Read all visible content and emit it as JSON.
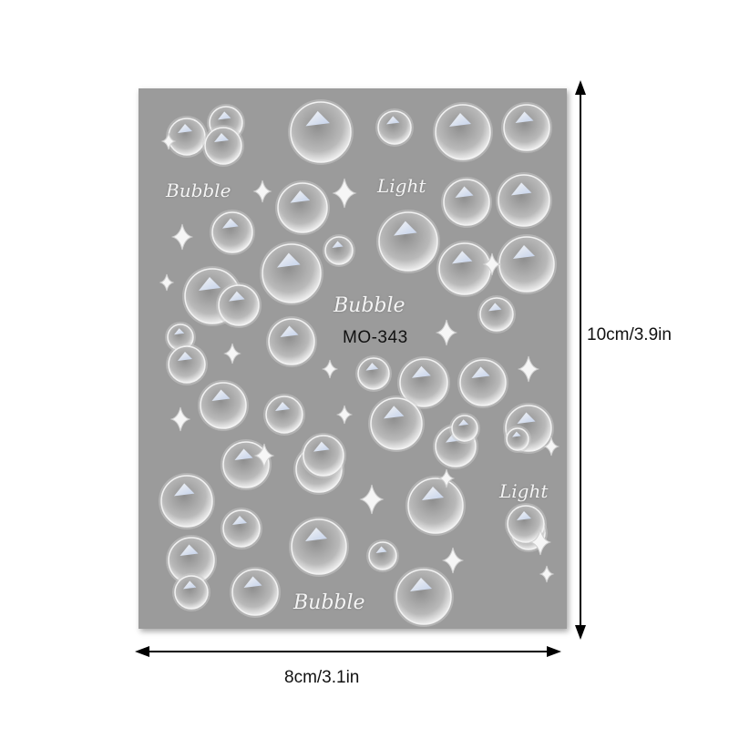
{
  "product": {
    "code": "MO-343",
    "logos": [
      "Bubble",
      "Light",
      "Bubble",
      "Light",
      "Bubble"
    ],
    "sheet_color": "#9b9b9b",
    "bubble_tint": "#cfe0ff"
  },
  "dimensions": {
    "width_label": "8cm/3.1in",
    "height_label": "10cm/3.9in"
  }
}
